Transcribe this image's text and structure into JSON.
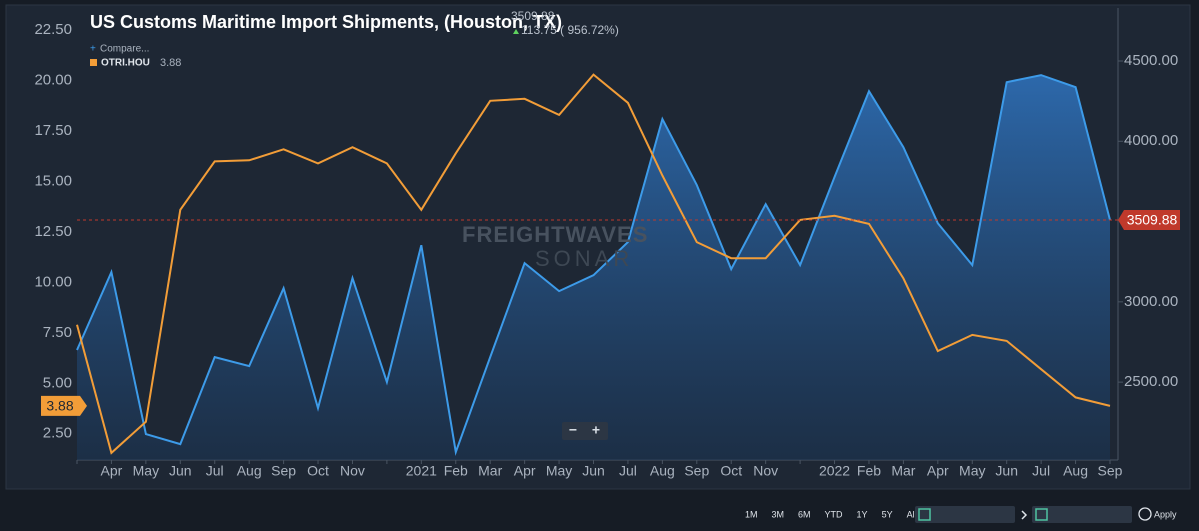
{
  "chart_data": {
    "type": "line",
    "title": "US Customs Maritime Import Shipments, (Houston, TX)",
    "change": "113.75 ( 956.72%)",
    "compare": "Compare...",
    "watermark": [
      "FREIGHTWAVES",
      "SONAR"
    ],
    "categories": [
      null,
      "Apr",
      "May",
      "Jun",
      "Jul",
      "Aug",
      "Sep",
      "Oct",
      "Nov",
      null,
      "2021",
      "Feb",
      "Mar",
      "Apr",
      "May",
      "Jun",
      "Jul",
      "Aug",
      "Sep",
      "Oct",
      "Nov",
      null,
      "2022",
      "Feb",
      "Mar",
      "Apr",
      "May",
      "Jun",
      "Jul",
      "Aug",
      "Sep"
    ],
    "series": [
      {
        "color": "#3d9be9",
        "axis": "y2",
        "fill": "area",
        "values": [
          2700,
          3185,
          2176,
          2114,
          2656,
          2600,
          3085,
          2338,
          3148,
          2500,
          3353,
          2064,
          2656,
          3241,
          3067,
          3166,
          3372,
          4138,
          3727,
          3204,
          3608,
          3229,
          3777,
          4312,
          3963,
          3490,
          3229,
          4368,
          4412,
          4337,
          3509.88
        ]
      },
      {
        "name": "OTRI.HOU",
        "color": "#f29d38",
        "values": [
          7.9,
          1.55,
          3.1,
          13.6,
          16.0,
          16.05,
          16.6,
          15.9,
          16.7,
          15.9,
          13.6,
          16.4,
          19.0,
          19.1,
          18.3,
          20.3,
          18.9,
          15.3,
          12.0,
          11.2,
          11.2,
          13.1,
          13.3,
          12.9,
          10.2,
          6.6,
          7.4,
          7.1,
          5.7,
          4.3,
          3.88
        ]
      }
    ],
    "ylim": [
      1.2,
      23.6
    ],
    "yticks": [
      {
        "value": 2.5,
        "label": "2.50"
      },
      {
        "value": 5,
        "label": "5.00"
      },
      {
        "value": 7.5,
        "label": "7.50"
      },
      {
        "value": 10,
        "label": "10.00"
      },
      {
        "value": 12.5,
        "label": "12.50"
      },
      {
        "value": 15,
        "label": "15.00"
      },
      {
        "value": 17.5,
        "label": "17.50"
      },
      {
        "value": 20,
        "label": "20.00"
      },
      {
        "value": 22.5,
        "label": "22.50"
      }
    ],
    "y2lim": [
      2015,
      4830
    ],
    "y2ticks": [
      {
        "value": 2500,
        "label": "2500.00"
      },
      {
        "value": 3000,
        "label": "3000.00"
      },
      {
        "value": 4000,
        "label": "4000.00"
      },
      {
        "value": 4500,
        "label": "4500.00"
      }
    ],
    "grid": false
  },
  "controls": {
    "ranges": [
      "1M",
      "3M",
      "6M",
      "YTD",
      "1Y",
      "5Y",
      "All"
    ],
    "apply": "Apply"
  }
}
